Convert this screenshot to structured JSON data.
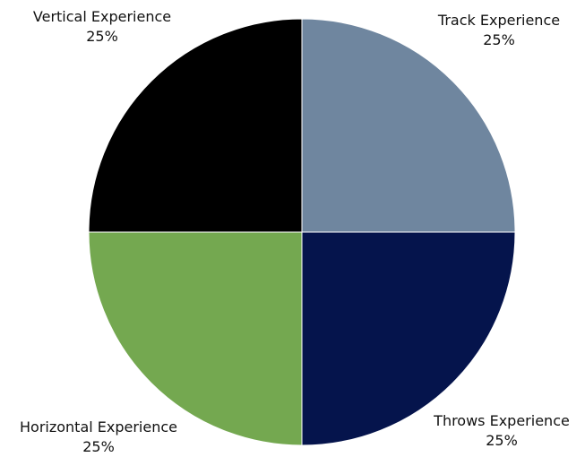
{
  "chart_data": {
    "type": "pie",
    "title": "",
    "legend": "none",
    "slices": [
      {
        "label": "Track Experience",
        "value": 25,
        "value_label": "25%",
        "color": "#6f869f"
      },
      {
        "label": "Throws Experience",
        "value": 25,
        "value_label": "25%",
        "color": "#05144c"
      },
      {
        "label": "Horizontal Experience",
        "value": 25,
        "value_label": "25%",
        "color": "#74a850"
      },
      {
        "label": "Vertical Experience",
        "value": 25,
        "value_label": "25%",
        "color": "#000000"
      }
    ]
  }
}
